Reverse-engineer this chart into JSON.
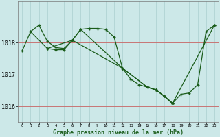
{
  "title": "Graphe pression niveau de la mer (hPa)",
  "bg_color": "#cce8e8",
  "plot_bg_color": "#cce8e8",
  "grid_color": "#aacfcf",
  "red_line_color": "#cc6666",
  "line_color": "#1a5c1a",
  "ylim": [
    1015.5,
    1019.3
  ],
  "yticks": [
    1016,
    1017,
    1018
  ],
  "ytick_fontsize": 6,
  "xtick_fontsize": 4,
  "title_fontsize": 6,
  "figsize": [
    3.2,
    2.0
  ],
  "dpi": 100,
  "line_a_x": [
    0,
    1,
    2,
    3,
    4,
    5,
    6,
    7,
    8,
    9,
    10,
    11,
    12,
    13,
    14,
    15,
    16,
    17,
    18,
    19,
    20,
    21,
    22,
    23
  ],
  "line_a_y": [
    1017.75,
    1018.35,
    1018.55,
    1018.05,
    1017.85,
    1017.82,
    1018.08,
    1018.42,
    1018.45,
    1018.45,
    1018.42,
    1018.18,
    1017.2,
    1016.85,
    1016.68,
    1016.6,
    1016.52,
    1016.32,
    1016.1,
    1016.38,
    1016.42,
    1016.68,
    1018.35,
    1018.55
  ],
  "line_b_x": [
    1,
    3,
    4,
    5,
    6,
    12,
    15,
    16,
    17,
    18,
    23
  ],
  "line_b_y": [
    1018.35,
    1017.82,
    1017.78,
    1017.78,
    1018.08,
    1017.2,
    1016.6,
    1016.52,
    1016.32,
    1016.1,
    1018.55
  ],
  "line_c_x": [
    3,
    6,
    7,
    12,
    15,
    16,
    17,
    18
  ],
  "line_c_y": [
    1017.82,
    1018.08,
    1018.42,
    1017.2,
    1016.6,
    1016.52,
    1016.32,
    1016.08
  ]
}
